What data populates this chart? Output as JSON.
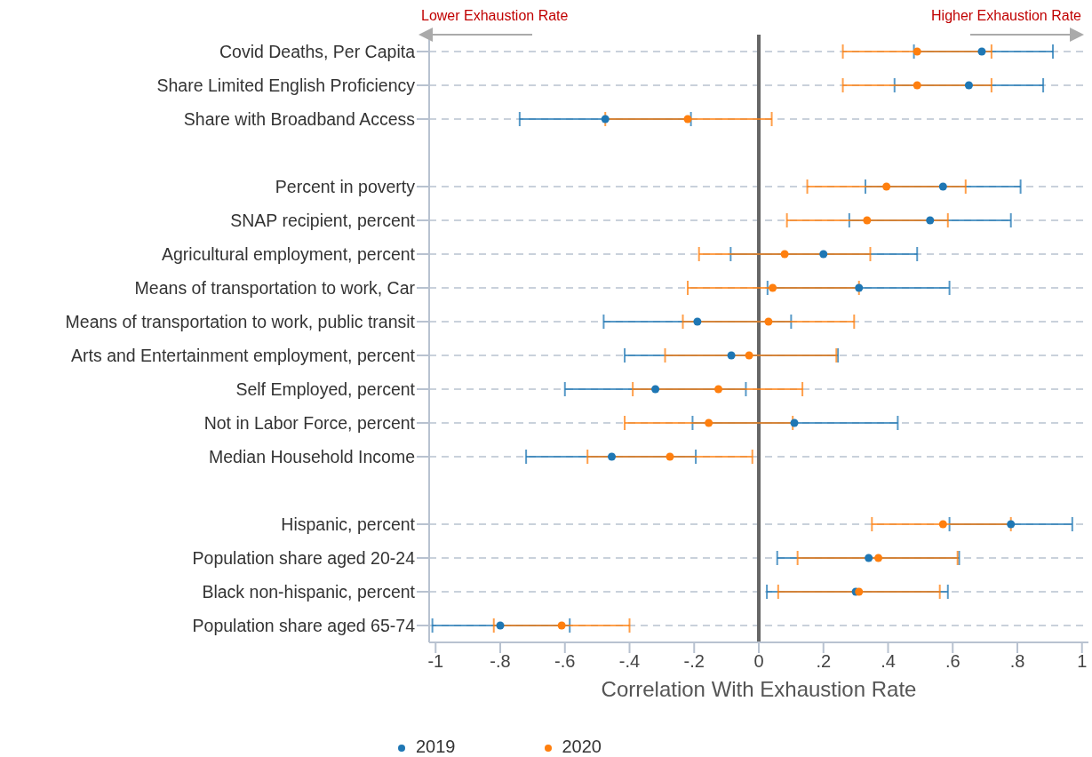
{
  "chart_data": {
    "type": "scatter",
    "orientation": "horizontal",
    "categories": [
      "Covid Deaths, Per Capita",
      "Share Limited English Proficiency",
      "Share with Broadband Access",
      null,
      "Percent in poverty",
      "SNAP recipient, percent",
      "Agricultural employment, percent",
      "Means of transportation to work, Car",
      "Means of transportation to work, public transit",
      "Arts and Entertainment employment, percent",
      "Self Employed, percent",
      "Not in Labor Force, percent",
      "Median Household Income",
      null,
      "Hispanic, percent",
      "Population share aged 20-24",
      "Black non-hispanic, percent",
      "Population share aged 65-74"
    ],
    "series": [
      {
        "name": "2019",
        "color": "#1f77b4",
        "values": [
          0.69,
          0.65,
          -0.475,
          null,
          0.57,
          0.53,
          0.2,
          0.31,
          -0.19,
          -0.085,
          -0.32,
          0.11,
          -0.455,
          null,
          0.78,
          0.34,
          0.3,
          -0.8
        ],
        "errors": [
          [
            0.48,
            0.91
          ],
          [
            0.42,
            0.88
          ],
          [
            -0.74,
            -0.21
          ],
          null,
          [
            0.33,
            0.81
          ],
          [
            0.28,
            0.78
          ],
          [
            -0.087,
            0.49
          ],
          [
            0.027,
            0.59
          ],
          [
            -0.48,
            0.1
          ],
          [
            -0.415,
            0.245
          ],
          [
            -0.6,
            -0.04
          ],
          [
            -0.205,
            0.43
          ],
          [
            -0.72,
            -0.195
          ],
          null,
          [
            0.59,
            0.97
          ],
          [
            0.057,
            0.62
          ],
          [
            0.025,
            0.585
          ],
          [
            -1.01,
            -0.585
          ]
        ]
      },
      {
        "name": "2020",
        "color": "#ff7f0e",
        "values": [
          0.49,
          0.49,
          -0.22,
          null,
          0.395,
          0.335,
          0.08,
          0.043,
          0.03,
          -0.03,
          -0.125,
          -0.155,
          -0.275,
          null,
          0.57,
          0.37,
          0.31,
          -0.61
        ],
        "errors": [
          [
            0.26,
            0.72
          ],
          [
            0.26,
            0.72
          ],
          [
            -0.475,
            0.04
          ],
          null,
          [
            0.15,
            0.64
          ],
          [
            0.087,
            0.585
          ],
          [
            -0.185,
            0.345
          ],
          [
            -0.22,
            0.31
          ],
          [
            -0.235,
            0.295
          ],
          [
            -0.29,
            0.24
          ],
          [
            -0.39,
            0.135
          ],
          [
            -0.415,
            0.105
          ],
          [
            -0.53,
            -0.02
          ],
          null,
          [
            0.35,
            0.78
          ],
          [
            0.12,
            0.615
          ],
          [
            0.06,
            0.56
          ],
          [
            -0.82,
            -0.4
          ]
        ]
      }
    ],
    "xlim": [
      -1.02,
      1.02
    ],
    "xticks": [
      {
        "value": -1,
        "label": "-1"
      },
      {
        "value": -0.8,
        "label": "-.8"
      },
      {
        "value": -0.6,
        "label": "-.6"
      },
      {
        "value": -0.4,
        "label": "-.4"
      },
      {
        "value": -0.2,
        "label": "-.2"
      },
      0,
      {
        "value": 0.2,
        "label": ".2"
      },
      {
        "value": 0.4,
        "label": ".4"
      },
      {
        "value": 0.6,
        "label": ".6"
      },
      {
        "value": 0.8,
        "label": ".8"
      },
      1
    ],
    "xlabel": "Correlation With Exhaustion Rate",
    "ref_lines": [
      {
        "axis": "x",
        "value": 0,
        "color": "#666666"
      }
    ],
    "annotations": [
      "Lower Exhaustion Rate",
      "Higher Exhaustion Rate"
    ],
    "grid": "y",
    "legend": "bottom",
    "marker": "circle"
  }
}
